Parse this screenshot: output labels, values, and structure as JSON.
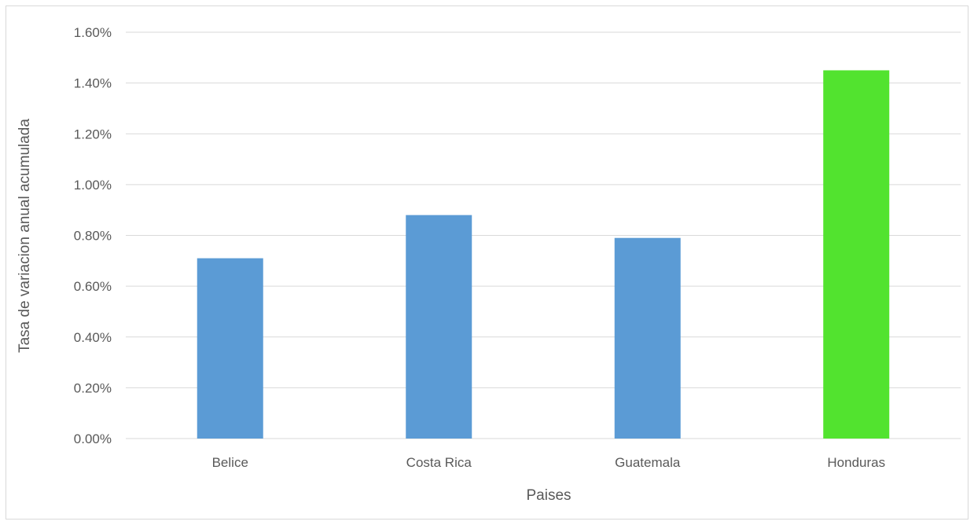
{
  "chart_data": {
    "type": "bar",
    "categories": [
      "Belice",
      "Costa Rica",
      "Guatemala",
      "Honduras"
    ],
    "values": [
      0.0071,
      0.0088,
      0.0079,
      0.0145
    ],
    "bar_colors": [
      "#5B9BD5",
      "#5B9BD5",
      "#5B9BD5",
      "#52E32F"
    ],
    "xlabel": "Paises",
    "ylabel": "Tasa de variacion anual acumulada",
    "ylim": [
      0,
      0.016
    ],
    "yticks": [
      0,
      0.002,
      0.004,
      0.006,
      0.008,
      0.01,
      0.012,
      0.014,
      0.016
    ],
    "ytick_labels": [
      "0.00%",
      "0.20%",
      "0.40%",
      "0.60%",
      "0.80%",
      "1.00%",
      "1.20%",
      "1.40%",
      "1.60%"
    ],
    "grid": true,
    "grid_color": "#d9d9d9",
    "legend": "none"
  }
}
